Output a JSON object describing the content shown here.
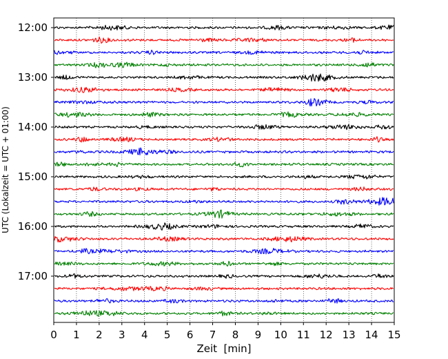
{
  "chart_data": {
    "type": "line",
    "title": "",
    "xlabel": "Zeit  [min]",
    "ylabel": "UTC (Lokalzeit = UTC + 01:00)",
    "xlim": [
      0,
      15
    ],
    "x_ticks": [
      0,
      1,
      2,
      3,
      4,
      5,
      6,
      7,
      8,
      9,
      10,
      11,
      12,
      13,
      14,
      15
    ],
    "y_tick_labels": [
      "12:00",
      "13:00",
      "14:00",
      "15:00",
      "16:00",
      "17:00"
    ],
    "trace_start_times": [
      "12:00",
      "12:15",
      "12:30",
      "12:45",
      "13:00",
      "13:15",
      "13:30",
      "13:45",
      "14:00",
      "14:15",
      "14:30",
      "14:45",
      "15:00",
      "15:15",
      "15:30",
      "15:45",
      "16:00",
      "16:15",
      "16:30",
      "16:45",
      "17:00",
      "17:15",
      "17:30",
      "17:45"
    ],
    "trace_colors": [
      "#000000",
      "#ff0000",
      "#0000ff",
      "#008000"
    ],
    "grid": {
      "x": true,
      "y": false,
      "style": "dotted"
    },
    "legend": "none"
  }
}
